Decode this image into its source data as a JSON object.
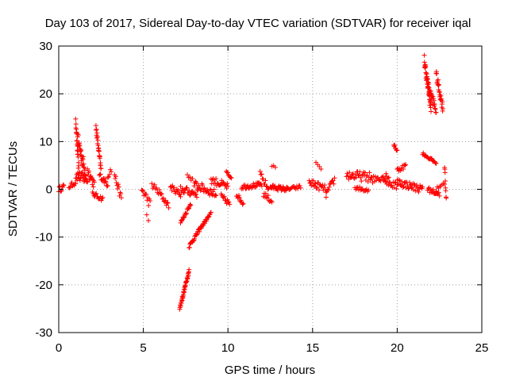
{
  "chart_data": {
    "type": "scatter",
    "title": "Day 103 of 2017, Sidereal Day-to-day VTEC variation (SDTVAR) for receiver iqal",
    "xlabel": "GPS time / hours",
    "ylabel": "SDTVAR / TECUs",
    "xlim": [
      0,
      25
    ],
    "ylim": [
      -30,
      30
    ],
    "xticks": [
      0,
      5,
      10,
      15,
      20,
      25
    ],
    "yticks": [
      -30,
      -20,
      -10,
      0,
      10,
      20,
      30
    ],
    "grid": true,
    "marker": "+",
    "series": [
      {
        "name": "SDTVAR",
        "color": "#ff0000",
        "tracks": [
          {
            "x0": 0.0,
            "x1": 0.3,
            "y0": 0.0,
            "y1": 0.5,
            "n": 10,
            "jitter": 0.6
          },
          {
            "x0": 0.6,
            "x1": 1.0,
            "y0": 0.5,
            "y1": 1.5,
            "n": 10,
            "jitter": 0.5
          },
          {
            "x0": 1.0,
            "x1": 1.2,
            "y0": 14.0,
            "y1": 3.0,
            "n": 20,
            "jitter": 1.0
          },
          {
            "x0": 1.1,
            "x1": 1.6,
            "y0": 11.0,
            "y1": 3.0,
            "n": 30,
            "jitter": 1.5
          },
          {
            "x0": 1.0,
            "x1": 1.7,
            "y0": 3.0,
            "y1": 2.0,
            "n": 25,
            "jitter": 1.2
          },
          {
            "x0": 1.7,
            "x1": 2.1,
            "y0": 4.0,
            "y1": 1.0,
            "n": 15,
            "jitter": 1.0
          },
          {
            "x0": 2.0,
            "x1": 2.6,
            "y0": -1.0,
            "y1": -2.0,
            "n": 15,
            "jitter": 0.5
          },
          {
            "x0": 2.2,
            "x1": 2.5,
            "y0": 13.0,
            "y1": 4.0,
            "n": 25,
            "jitter": 0.8
          },
          {
            "x0": 2.4,
            "x1": 2.9,
            "y0": 3.0,
            "y1": 1.0,
            "n": 15,
            "jitter": 0.6
          },
          {
            "x0": 2.9,
            "x1": 3.1,
            "y0": 3.0,
            "y1": 4.0,
            "n": 5,
            "jitter": 0.8
          },
          {
            "x0": 3.3,
            "x1": 3.7,
            "y0": 3.0,
            "y1": -2.0,
            "n": 12,
            "jitter": 0.8
          },
          {
            "x0": 4.9,
            "x1": 5.4,
            "y0": 0.0,
            "y1": -3.0,
            "n": 12,
            "jitter": 1.0
          },
          {
            "x0": 5.2,
            "x1": 5.3,
            "y0": -5.5,
            "y1": -6.5,
            "n": 2,
            "jitter": 0.2
          },
          {
            "x0": 5.5,
            "x1": 6.0,
            "y0": 1.0,
            "y1": -1.0,
            "n": 10,
            "jitter": 0.8
          },
          {
            "x0": 6.0,
            "x1": 6.5,
            "y0": -1.0,
            "y1": -3.5,
            "n": 12,
            "jitter": 0.6
          },
          {
            "x0": 6.6,
            "x1": 7.2,
            "y0": 0.5,
            "y1": -1.0,
            "n": 15,
            "jitter": 0.6
          },
          {
            "x0": 7.15,
            "x1": 7.7,
            "y0": -25.0,
            "y1": -17.0,
            "n": 40,
            "jitter": 0.4
          },
          {
            "x0": 7.2,
            "x1": 7.8,
            "y0": -7.0,
            "y1": -3.0,
            "n": 18,
            "jitter": 0.4
          },
          {
            "x0": 7.7,
            "x1": 8.4,
            "y0": -12.0,
            "y1": -8.0,
            "n": 25,
            "jitter": 0.4
          },
          {
            "x0": 8.4,
            "x1": 9.0,
            "y0": -8.0,
            "y1": -5.0,
            "n": 20,
            "jitter": 0.3
          },
          {
            "x0": 7.2,
            "x1": 8.2,
            "y0": 0.0,
            "y1": -1.0,
            "n": 25,
            "jitter": 0.8
          },
          {
            "x0": 7.6,
            "x1": 7.9,
            "y0": 3.0,
            "y1": 2.0,
            "n": 5,
            "jitter": 0.4
          },
          {
            "x0": 8.0,
            "x1": 9.3,
            "y0": 1.0,
            "y1": -1.0,
            "n": 35,
            "jitter": 0.9
          },
          {
            "x0": 9.0,
            "x1": 10.0,
            "y0": 2.0,
            "y1": 0.5,
            "n": 25,
            "jitter": 0.8
          },
          {
            "x0": 9.6,
            "x1": 10.1,
            "y0": -1.5,
            "y1": -3.0,
            "n": 12,
            "jitter": 0.6
          },
          {
            "x0": 9.9,
            "x1": 10.2,
            "y0": 3.5,
            "y1": 2.5,
            "n": 8,
            "jitter": 0.4
          },
          {
            "x0": 10.5,
            "x1": 10.9,
            "y0": -1.0,
            "y1": -3.0,
            "n": 12,
            "jitter": 0.5
          },
          {
            "x0": 10.8,
            "x1": 12.0,
            "y0": 0.5,
            "y1": 1.0,
            "n": 30,
            "jitter": 0.5
          },
          {
            "x0": 11.9,
            "x1": 12.4,
            "y0": 3.0,
            "y1": 0.0,
            "n": 12,
            "jitter": 0.8
          },
          {
            "x0": 12.1,
            "x1": 12.6,
            "y0": -1.0,
            "y1": -2.5,
            "n": 12,
            "jitter": 0.6
          },
          {
            "x0": 12.6,
            "x1": 12.8,
            "y0": 5.0,
            "y1": 4.5,
            "n": 3,
            "jitter": 0.3
          },
          {
            "x0": 12.5,
            "x1": 13.5,
            "y0": 0.5,
            "y1": 0.0,
            "n": 30,
            "jitter": 0.5
          },
          {
            "x0": 13.5,
            "x1": 14.3,
            "y0": 0.0,
            "y1": 0.5,
            "n": 15,
            "jitter": 0.4
          },
          {
            "x0": 14.8,
            "x1": 15.8,
            "y0": 1.5,
            "y1": 0.0,
            "n": 25,
            "jitter": 0.8
          },
          {
            "x0": 15.2,
            "x1": 15.5,
            "y0": 5.5,
            "y1": 4.0,
            "n": 4,
            "jitter": 0.3
          },
          {
            "x0": 15.8,
            "x1": 16.3,
            "y0": -1.0,
            "y1": 2.0,
            "n": 12,
            "jitter": 0.8
          },
          {
            "x0": 17.0,
            "x1": 18.5,
            "y0": 3.0,
            "y1": 2.5,
            "n": 35,
            "jitter": 1.0
          },
          {
            "x0": 17.5,
            "x1": 18.3,
            "y0": 0.0,
            "y1": 0.0,
            "n": 15,
            "jitter": 0.6
          },
          {
            "x0": 18.5,
            "x1": 19.5,
            "y0": 2.0,
            "y1": 3.0,
            "n": 20,
            "jitter": 0.8
          },
          {
            "x0": 19.2,
            "x1": 20.0,
            "y0": 2.0,
            "y1": 0.5,
            "n": 18,
            "jitter": 0.8
          },
          {
            "x0": 19.8,
            "x1": 20.0,
            "y0": 9.5,
            "y1": 8.0,
            "n": 8,
            "jitter": 0.4
          },
          {
            "x0": 20.0,
            "x1": 20.5,
            "y0": 4.0,
            "y1": 5.0,
            "n": 12,
            "jitter": 0.5
          },
          {
            "x0": 20.0,
            "x1": 21.5,
            "y0": 1.5,
            "y1": 0.0,
            "n": 40,
            "jitter": 0.8
          },
          {
            "x0": 21.6,
            "x1": 22.0,
            "y0": 27.0,
            "y1": 17.0,
            "n": 40,
            "jitter": 1.2
          },
          {
            "x0": 21.8,
            "x1": 22.3,
            "y0": 22.0,
            "y1": 16.5,
            "n": 25,
            "jitter": 1.0
          },
          {
            "x0": 22.3,
            "x1": 22.7,
            "y0": 24.0,
            "y1": 17.0,
            "n": 25,
            "jitter": 1.0
          },
          {
            "x0": 21.5,
            "x1": 22.3,
            "y0": 7.5,
            "y1": 5.5,
            "n": 20,
            "jitter": 0.3
          },
          {
            "x0": 21.8,
            "x1": 22.5,
            "y0": 0.0,
            "y1": -1.0,
            "n": 18,
            "jitter": 0.5
          },
          {
            "x0": 22.3,
            "x1": 22.8,
            "y0": 0.0,
            "y1": 1.0,
            "n": 8,
            "jitter": 0.5
          },
          {
            "x0": 22.8,
            "x1": 22.9,
            "y0": 5.0,
            "y1": -2.0,
            "n": 8,
            "jitter": 0.8
          }
        ]
      }
    ]
  }
}
